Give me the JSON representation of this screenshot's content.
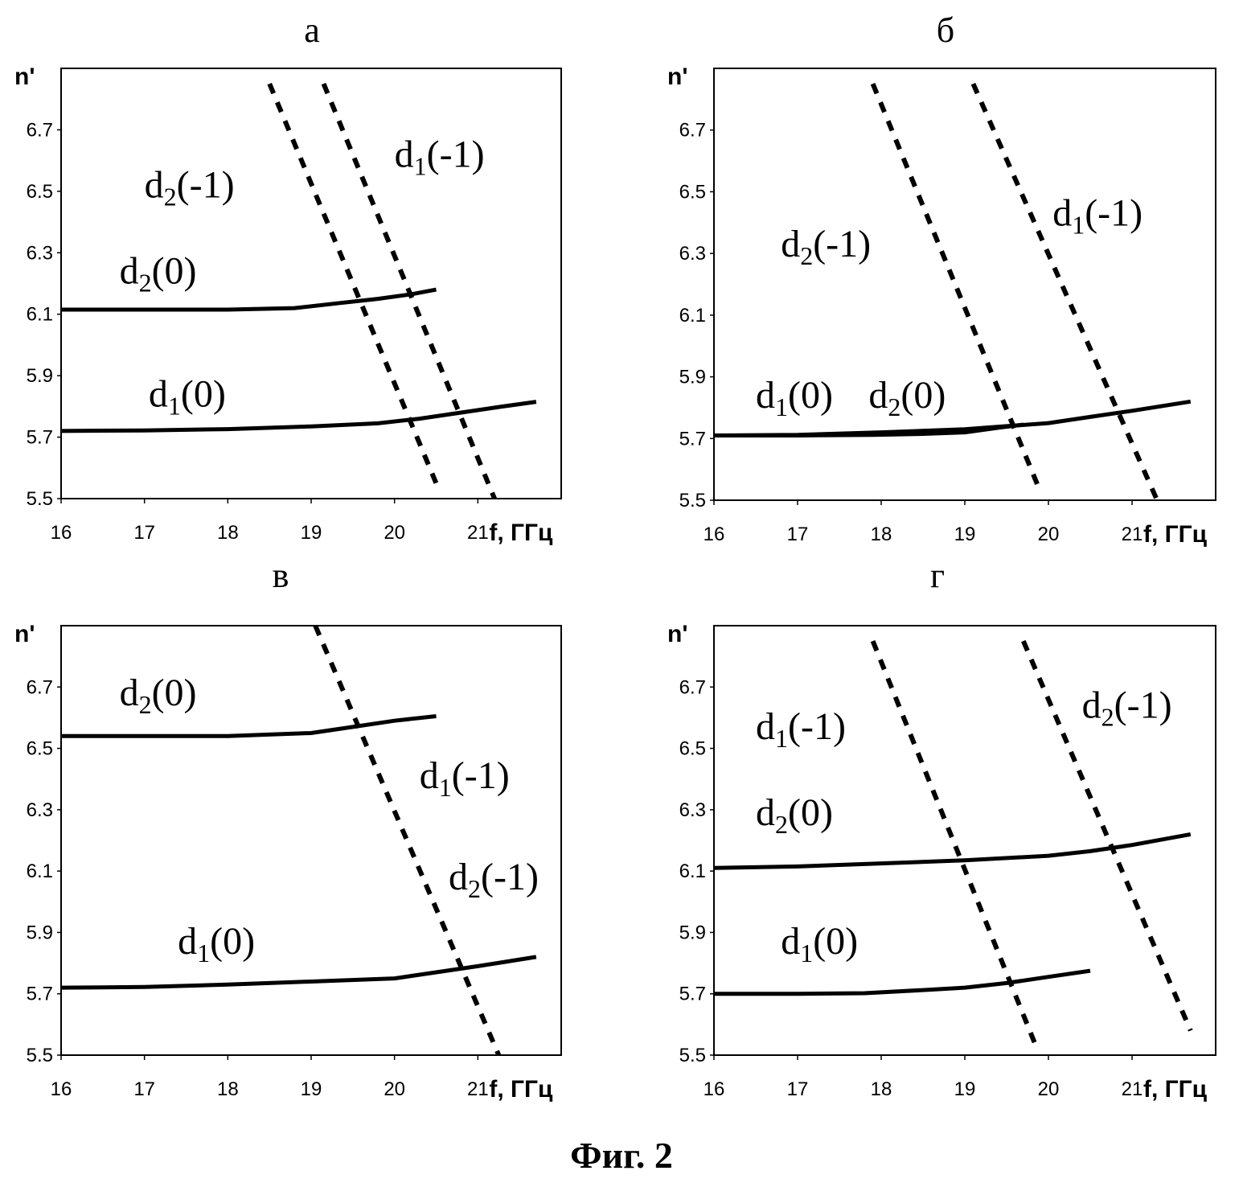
{
  "caption": "Фиг. 2",
  "chart_data": [
    {
      "type": "line",
      "title": "а",
      "ylabel": "n'",
      "xlabel": "f, ГГц",
      "xlim": [
        16,
        22
      ],
      "ylim": [
        5.5,
        6.9
      ],
      "xticks": [
        "16",
        "17",
        "18",
        "19",
        "20",
        "21"
      ],
      "yticks": [
        "5.5",
        "5.7",
        "5.9",
        "6.1",
        "6.3",
        "6.5",
        "6.7"
      ],
      "series": [
        {
          "name": "d2(0)",
          "style": "solid",
          "x": [
            16,
            17,
            18,
            18.8,
            19.3,
            19.8,
            20.2,
            20.5
          ],
          "y": [
            6.115,
            6.115,
            6.115,
            6.12,
            6.135,
            6.15,
            6.165,
            6.18
          ]
        },
        {
          "name": "d1(0)",
          "style": "solid",
          "x": [
            16,
            17,
            18,
            19,
            19.8,
            20.3,
            20.8,
            21.3,
            21.7
          ],
          "y": [
            5.72,
            5.722,
            5.726,
            5.735,
            5.745,
            5.76,
            5.78,
            5.8,
            5.815
          ]
        },
        {
          "name": "d2(-1)",
          "style": "dashed",
          "x": [
            18.5,
            20.5
          ],
          "y": [
            6.85,
            5.55
          ]
        },
        {
          "name": "d1(-1)",
          "style": "dashed",
          "x": [
            19.15,
            21.2
          ],
          "y": [
            6.85,
            5.5
          ]
        }
      ],
      "labels": [
        {
          "main": "d",
          "sub": "2",
          "rest": "(-1)",
          "x": 17.0,
          "y": 6.48
        },
        {
          "main": "d",
          "sub": "1",
          "rest": "(-1)",
          "x": 20.0,
          "y": 6.58
        },
        {
          "main": "d",
          "sub": "2",
          "rest": "(0)",
          "x": 16.7,
          "y": 6.2
        },
        {
          "main": "d",
          "sub": "1",
          "rest": "(0)",
          "x": 17.05,
          "y": 5.8
        }
      ]
    },
    {
      "type": "line",
      "title": "б",
      "ylabel": "n'",
      "xlabel": "f, ГГц",
      "xlim": [
        16,
        22
      ],
      "ylim": [
        5.5,
        6.9
      ],
      "xticks": [
        "16",
        "17",
        "18",
        "19",
        "20",
        "21"
      ],
      "yticks": [
        "5.5",
        "5.7",
        "5.9",
        "6.1",
        "6.3",
        "6.5",
        "6.7"
      ],
      "series": [
        {
          "name": "d1(0)",
          "style": "solid",
          "x": [
            16,
            17,
            18,
            19,
            19.5,
            20,
            20.5,
            21,
            21.7
          ],
          "y": [
            5.71,
            5.712,
            5.72,
            5.73,
            5.74,
            5.75,
            5.77,
            5.79,
            5.82
          ]
        },
        {
          "name": "d2(0)",
          "style": "solid",
          "x": [
            16,
            17,
            17.9,
            18.5,
            19.0,
            19.4,
            19.7
          ],
          "y": [
            5.71,
            5.71,
            5.712,
            5.715,
            5.72,
            5.735,
            5.745
          ]
        },
        {
          "name": "d2(-1)",
          "style": "dashed",
          "x": [
            17.9,
            19.9
          ],
          "y": [
            6.85,
            5.53
          ]
        },
        {
          "name": "d1(-1)",
          "style": "dashed",
          "x": [
            19.1,
            21.3
          ],
          "y": [
            6.85,
            5.5
          ]
        }
      ],
      "labels": [
        {
          "main": "d",
          "sub": "2",
          "rest": "(-1)",
          "x": 16.8,
          "y": 6.29
        },
        {
          "main": "d",
          "sub": "1",
          "rest": "(-1)",
          "x": 20.05,
          "y": 6.39
        },
        {
          "main": "d",
          "sub": "1",
          "rest": "(0)",
          "x": 16.5,
          "y": 5.8
        },
        {
          "main": "d",
          "sub": "2",
          "rest": "(0)",
          "x": 17.85,
          "y": 5.8
        }
      ]
    },
    {
      "type": "line",
      "title": "в",
      "ylabel": "n'",
      "xlabel": "f, ГГц",
      "xlim": [
        16,
        22
      ],
      "ylim": [
        5.5,
        6.9
      ],
      "xticks": [
        "16",
        "17",
        "18",
        "19",
        "20",
        "21"
      ],
      "yticks": [
        "5.5",
        "5.7",
        "5.9",
        "6.1",
        "6.3",
        "6.5",
        "6.7"
      ],
      "series": [
        {
          "name": "d2(0)",
          "style": "solid",
          "x": [
            16,
            17,
            18,
            19,
            19.5,
            20,
            20.5
          ],
          "y": [
            6.54,
            6.54,
            6.54,
            6.55,
            6.57,
            6.59,
            6.605
          ]
        },
        {
          "name": "d1(0)",
          "style": "solid",
          "x": [
            16,
            17,
            18,
            19,
            20,
            20.5,
            21,
            21.7
          ],
          "y": [
            5.72,
            5.722,
            5.73,
            5.74,
            5.75,
            5.77,
            5.79,
            5.82
          ]
        },
        {
          "name": "d1(-1), d2(-1)",
          "style": "dashed",
          "x": [
            19.05,
            21.25
          ],
          "y": [
            6.9,
            5.5
          ]
        }
      ],
      "labels": [
        {
          "main": "d",
          "sub": "2",
          "rest": "(0)",
          "x": 16.7,
          "y": 6.64
        },
        {
          "main": "d",
          "sub": "1",
          "rest": "(-1)",
          "x": 20.3,
          "y": 6.37
        },
        {
          "main": "d",
          "sub": "2",
          "rest": "(-1)",
          "x": 20.65,
          "y": 6.04
        },
        {
          "main": "d",
          "sub": "1",
          "rest": "(0)",
          "x": 17.4,
          "y": 5.83
        }
      ]
    },
    {
      "type": "line",
      "title": "г",
      "ylabel": "n'",
      "xlabel": "f, ГГц",
      "xlim": [
        16,
        22
      ],
      "ylim": [
        5.5,
        6.9
      ],
      "xticks": [
        "16",
        "17",
        "18",
        "19",
        "20",
        "21"
      ],
      "yticks": [
        "5.5",
        "5.7",
        "5.9",
        "6.1",
        "6.3",
        "6.5",
        "6.7"
      ],
      "series": [
        {
          "name": "d2(0)",
          "style": "solid",
          "x": [
            16,
            17,
            18,
            19,
            20,
            20.5,
            21,
            21.7
          ],
          "y": [
            6.11,
            6.115,
            6.125,
            6.135,
            6.15,
            6.165,
            6.185,
            6.22
          ]
        },
        {
          "name": "d1(0)",
          "style": "solid",
          "x": [
            16,
            17,
            17.8,
            18.5,
            19.0,
            19.5,
            20.0,
            20.5
          ],
          "y": [
            5.7,
            5.7,
            5.702,
            5.712,
            5.72,
            5.735,
            5.755,
            5.775
          ]
        },
        {
          "name": "d1(-1)",
          "style": "dashed",
          "x": [
            17.9,
            19.85
          ],
          "y": [
            6.85,
            5.53
          ]
        },
        {
          "name": "d2(-1)",
          "style": "dashed",
          "x": [
            19.7,
            21.7
          ],
          "y": [
            6.85,
            5.58
          ]
        }
      ],
      "labels": [
        {
          "main": "d",
          "sub": "1",
          "rest": "(-1)",
          "x": 16.5,
          "y": 6.53
        },
        {
          "main": "d",
          "sub": "2",
          "rest": "(-1)",
          "x": 20.4,
          "y": 6.6
        },
        {
          "main": "d",
          "sub": "2",
          "rest": "(0)",
          "x": 16.5,
          "y": 6.25
        },
        {
          "main": "d",
          "sub": "1",
          "rest": "(0)",
          "x": 16.8,
          "y": 5.83
        }
      ]
    }
  ]
}
